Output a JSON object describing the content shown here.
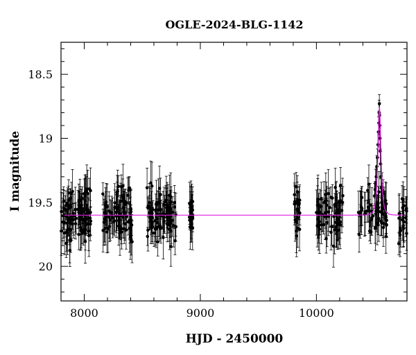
{
  "chart_data": {
    "type": "scatter",
    "title": "OGLE-2024-BLG-1142",
    "xlabel": "HJD - 2450000",
    "ylabel": "I magnitude",
    "xlim": [
      7800,
      10780
    ],
    "ylim": [
      20.27,
      18.25
    ],
    "y_inverted": true,
    "x_ticks": [
      8000,
      9000,
      10000
    ],
    "y_ticks": [
      18.5,
      19,
      19.5,
      20
    ],
    "y_tick_labels": [
      "18.5",
      "19",
      "19.5",
      "20"
    ],
    "grid": false,
    "colors": {
      "points": "#000000",
      "errorbars": "#000000",
      "model": "#e020e0",
      "axes": "#000000"
    },
    "seasons": [
      {
        "name": "season-1",
        "x": [
          7800,
          8060
        ],
        "mean_mag": 19.6,
        "scatter": 0.11,
        "n": 95
      },
      {
        "name": "season-2",
        "x": [
          8160,
          8420
        ],
        "mean_mag": 19.6,
        "scatter": 0.1,
        "n": 85
      },
      {
        "name": "season-3",
        "x": [
          8540,
          8790
        ],
        "mean_mag": 19.6,
        "scatter": 0.1,
        "n": 90
      },
      {
        "name": "season-4",
        "x": [
          8905,
          8935
        ],
        "mean_mag": 19.6,
        "scatter": 0.08,
        "n": 22
      },
      {
        "name": "season-5",
        "x": [
          9810,
          9860
        ],
        "mean_mag": 19.55,
        "scatter": 0.1,
        "n": 22
      },
      {
        "name": "season-6",
        "x": [
          10000,
          10230
        ],
        "mean_mag": 19.6,
        "scatter": 0.1,
        "n": 70
      },
      {
        "name": "season-7",
        "x": [
          10360,
          10610
        ],
        "mean_mag": 19.55,
        "scatter": 0.1,
        "n": 60
      },
      {
        "name": "season-8",
        "x": [
          10700,
          10780
        ],
        "mean_mag": 19.6,
        "scatter": 0.1,
        "n": 20
      }
    ],
    "event_points": [
      {
        "x": 10500,
        "y": 19.45
      },
      {
        "x": 10505,
        "y": 19.4
      },
      {
        "x": 10510,
        "y": 19.35
      },
      {
        "x": 10515,
        "y": 19.3
      },
      {
        "x": 10520,
        "y": 19.22
      },
      {
        "x": 10525,
        "y": 19.15
      },
      {
        "x": 10530,
        "y": 19.05
      },
      {
        "x": 10535,
        "y": 18.95
      },
      {
        "x": 10538,
        "y": 18.88
      },
      {
        "x": 10540,
        "y": 18.8
      },
      {
        "x": 10542,
        "y": 18.73
      },
      {
        "x": 10544,
        "y": 18.82
      },
      {
        "x": 10546,
        "y": 18.9
      },
      {
        "x": 10548,
        "y": 19.0
      },
      {
        "x": 10550,
        "y": 19.1
      },
      {
        "x": 10553,
        "y": 19.2
      },
      {
        "x": 10556,
        "y": 19.3
      },
      {
        "x": 10560,
        "y": 19.38
      },
      {
        "x": 10565,
        "y": 19.45
      },
      {
        "x": 10570,
        "y": 19.5
      }
    ],
    "model": {
      "baseline": 19.6,
      "peak_x": 10543,
      "peak_mag": 18.76,
      "tE": 22
    }
  }
}
